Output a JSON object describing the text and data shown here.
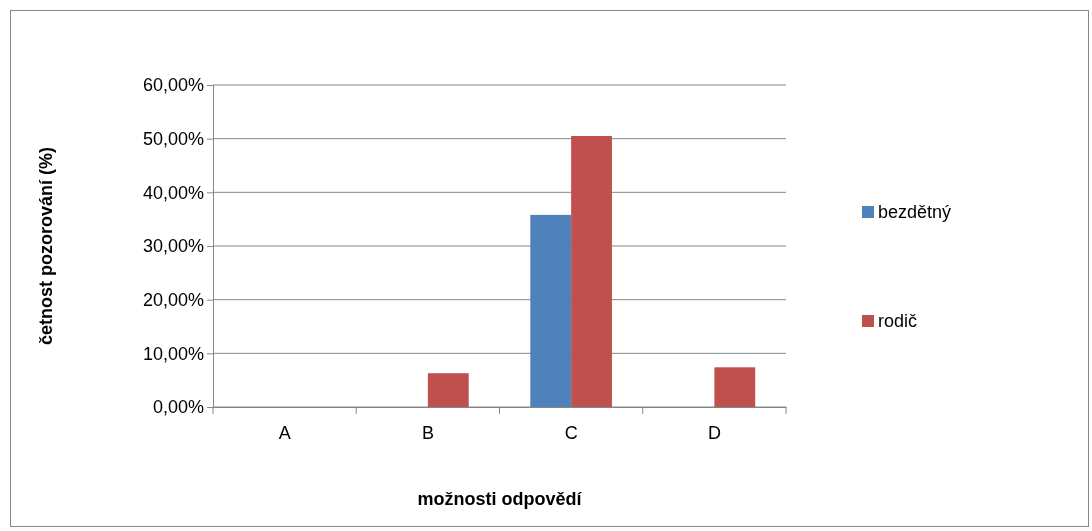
{
  "chart_data": {
    "type": "bar",
    "xlabel": "možnosti odpovědí",
    "ylabel": "četnost  pozorování (%)",
    "categories": [
      "A",
      "B",
      "C",
      "D"
    ],
    "series": [
      {
        "name": "bezdětný",
        "color": "#4f81bd",
        "values": [
          0,
          0,
          35.8,
          0
        ]
      },
      {
        "name": "rodič",
        "color": "#c0504d",
        "values": [
          0,
          6.3,
          50.5,
          7.4
        ]
      }
    ],
    "ylim": [
      0,
      60
    ],
    "yticks": [
      {
        "value": 0,
        "label": "0,00%"
      },
      {
        "value": 10,
        "label": "10,00%"
      },
      {
        "value": 20,
        "label": "20,00%"
      },
      {
        "value": 30,
        "label": "30,00%"
      },
      {
        "value": 40,
        "label": "40,00%"
      },
      {
        "value": 50,
        "label": "50,00%"
      },
      {
        "value": 60,
        "label": "60,00%"
      }
    ],
    "grid": "y",
    "legend": "right"
  }
}
